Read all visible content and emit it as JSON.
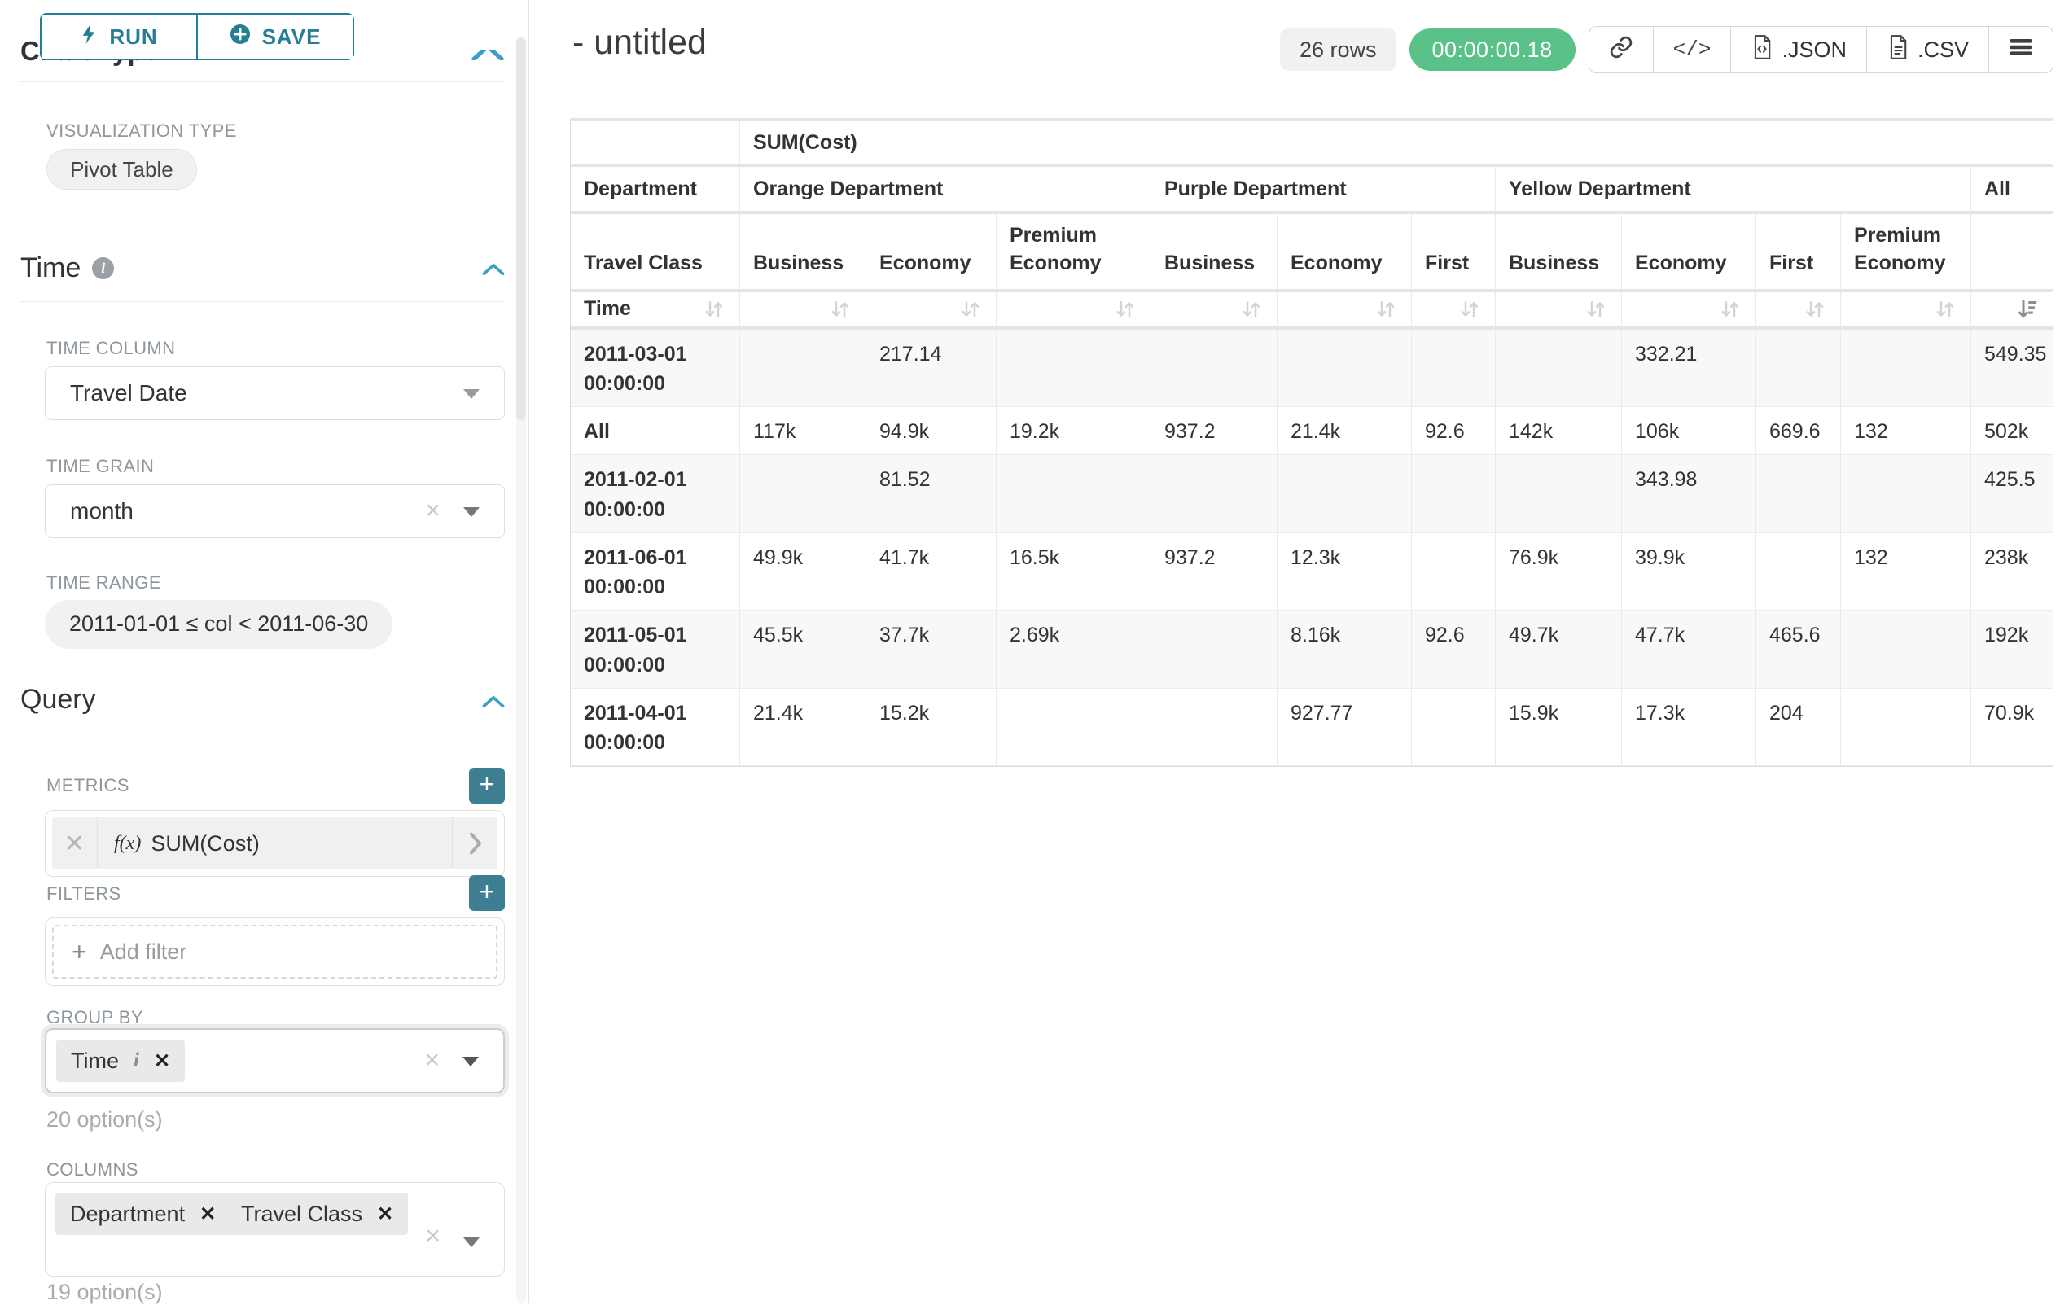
{
  "colors": {
    "accent": "#267d95",
    "accent_light": "#36a0c6",
    "success": "#5ac189",
    "plus_button": "#3d7e92",
    "label_gray": "#8d979d"
  },
  "icons": {
    "remove_x": "✕",
    "clear_x": "×",
    "plus": "+",
    "info_i": "i",
    "chevron_right": "❯",
    "code": "</>"
  },
  "sidebar": {
    "run_button": "RUN",
    "save_button": "SAVE",
    "chart_type_heading": "Chart Type",
    "visualization_type": {
      "label": "VISUALIZATION TYPE",
      "value": "Pivot Table"
    },
    "time_section": {
      "title": "Time"
    },
    "time_column": {
      "label": "TIME COLUMN",
      "value": "Travel Date"
    },
    "time_grain": {
      "label": "TIME GRAIN",
      "value": "month"
    },
    "time_range": {
      "label": "TIME RANGE",
      "value": "2011-01-01 ≤ col < 2011-06-30"
    },
    "query_section": {
      "title": "Query"
    },
    "metrics": {
      "label": "METRICS",
      "fx": "f(x)",
      "value": "SUM(Cost)"
    },
    "filters": {
      "label": "FILTERS",
      "placeholder": "Add filter"
    },
    "group_by": {
      "label": "GROUP BY",
      "items": [
        "Time"
      ],
      "hint": "20 option(s)"
    },
    "columns": {
      "label": "COLUMNS",
      "items": [
        "Department",
        "Travel Class"
      ],
      "hint": "19 option(s)"
    }
  },
  "header": {
    "title": "- untitled",
    "row_count": "26 rows",
    "timer": "00:00:00.18",
    "export_json": ".JSON",
    "export_csv": ".CSV"
  },
  "chart_data": {
    "type": "table",
    "title": "SUM(Cost)",
    "corner_labels": {
      "row2": "Department",
      "row3": "Travel Class",
      "row4": "Time"
    },
    "column_groups": [
      {
        "label": "Orange Department",
        "children": [
          "Business",
          "Economy",
          "Premium Economy"
        ]
      },
      {
        "label": "Purple Department",
        "children": [
          "Business",
          "Economy",
          "First"
        ]
      },
      {
        "label": "Yellow Department",
        "children": [
          "Business",
          "Economy",
          "First",
          "Premium Economy"
        ]
      },
      {
        "label": "All",
        "children": [
          ""
        ]
      }
    ],
    "rows": [
      {
        "label": "2011-03-01 00:00:00",
        "values": [
          "",
          "217.14",
          "",
          "",
          "",
          "",
          "",
          "332.21",
          "",
          "",
          "549.35"
        ]
      },
      {
        "label": "All",
        "values": [
          "117k",
          "94.9k",
          "19.2k",
          "937.2",
          "21.4k",
          "92.6",
          "142k",
          "106k",
          "669.6",
          "132",
          "502k"
        ]
      },
      {
        "label": "2011-02-01 00:00:00",
        "values": [
          "",
          "81.52",
          "",
          "",
          "",
          "",
          "",
          "343.98",
          "",
          "",
          "425.5"
        ]
      },
      {
        "label": "2011-06-01 00:00:00",
        "values": [
          "49.9k",
          "41.7k",
          "16.5k",
          "937.2",
          "12.3k",
          "",
          "76.9k",
          "39.9k",
          "",
          "132",
          "238k"
        ]
      },
      {
        "label": "2011-05-01 00:00:00",
        "values": [
          "45.5k",
          "37.7k",
          "2.69k",
          "",
          "8.16k",
          "92.6",
          "49.7k",
          "47.7k",
          "465.6",
          "",
          "192k"
        ]
      },
      {
        "label": "2011-04-01 00:00:00",
        "values": [
          "21.4k",
          "15.2k",
          "",
          "",
          "927.77",
          "",
          "15.9k",
          "17.3k",
          "204",
          "",
          "70.9k"
        ]
      }
    ],
    "sort": {
      "active_column": "All",
      "direction": "desc"
    },
    "striped_row_indexes": [
      0,
      2,
      4
    ]
  }
}
